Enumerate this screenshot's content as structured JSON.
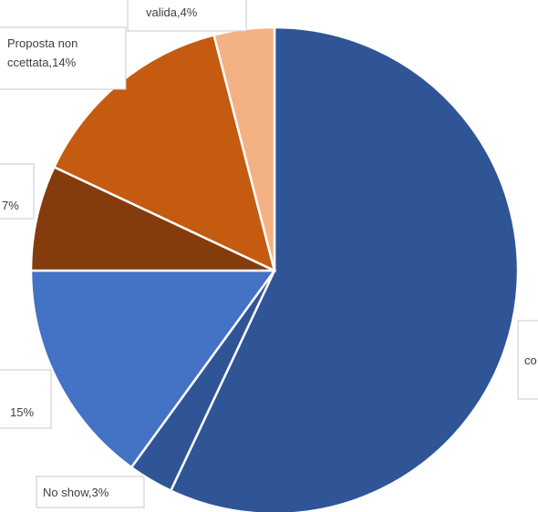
{
  "chart_data": {
    "type": "pie",
    "slices": [
      {
        "label": "co",
        "value": 57,
        "color": "#2f5597"
      },
      {
        "label": "No show,3%",
        "value": 3,
        "color": "#2f5597"
      },
      {
        "label": "15%",
        "value": 15,
        "color": "#4472c4"
      },
      {
        "label": "7%",
        "value": 7,
        "color": "#843c0c"
      },
      {
        "label_lines": [
          "Proposta non",
          "ccettata,14%"
        ],
        "value": 14,
        "color": "#c55a11"
      },
      {
        "label": "valida,4%",
        "value": 4,
        "color": "#f4b183"
      }
    ]
  }
}
